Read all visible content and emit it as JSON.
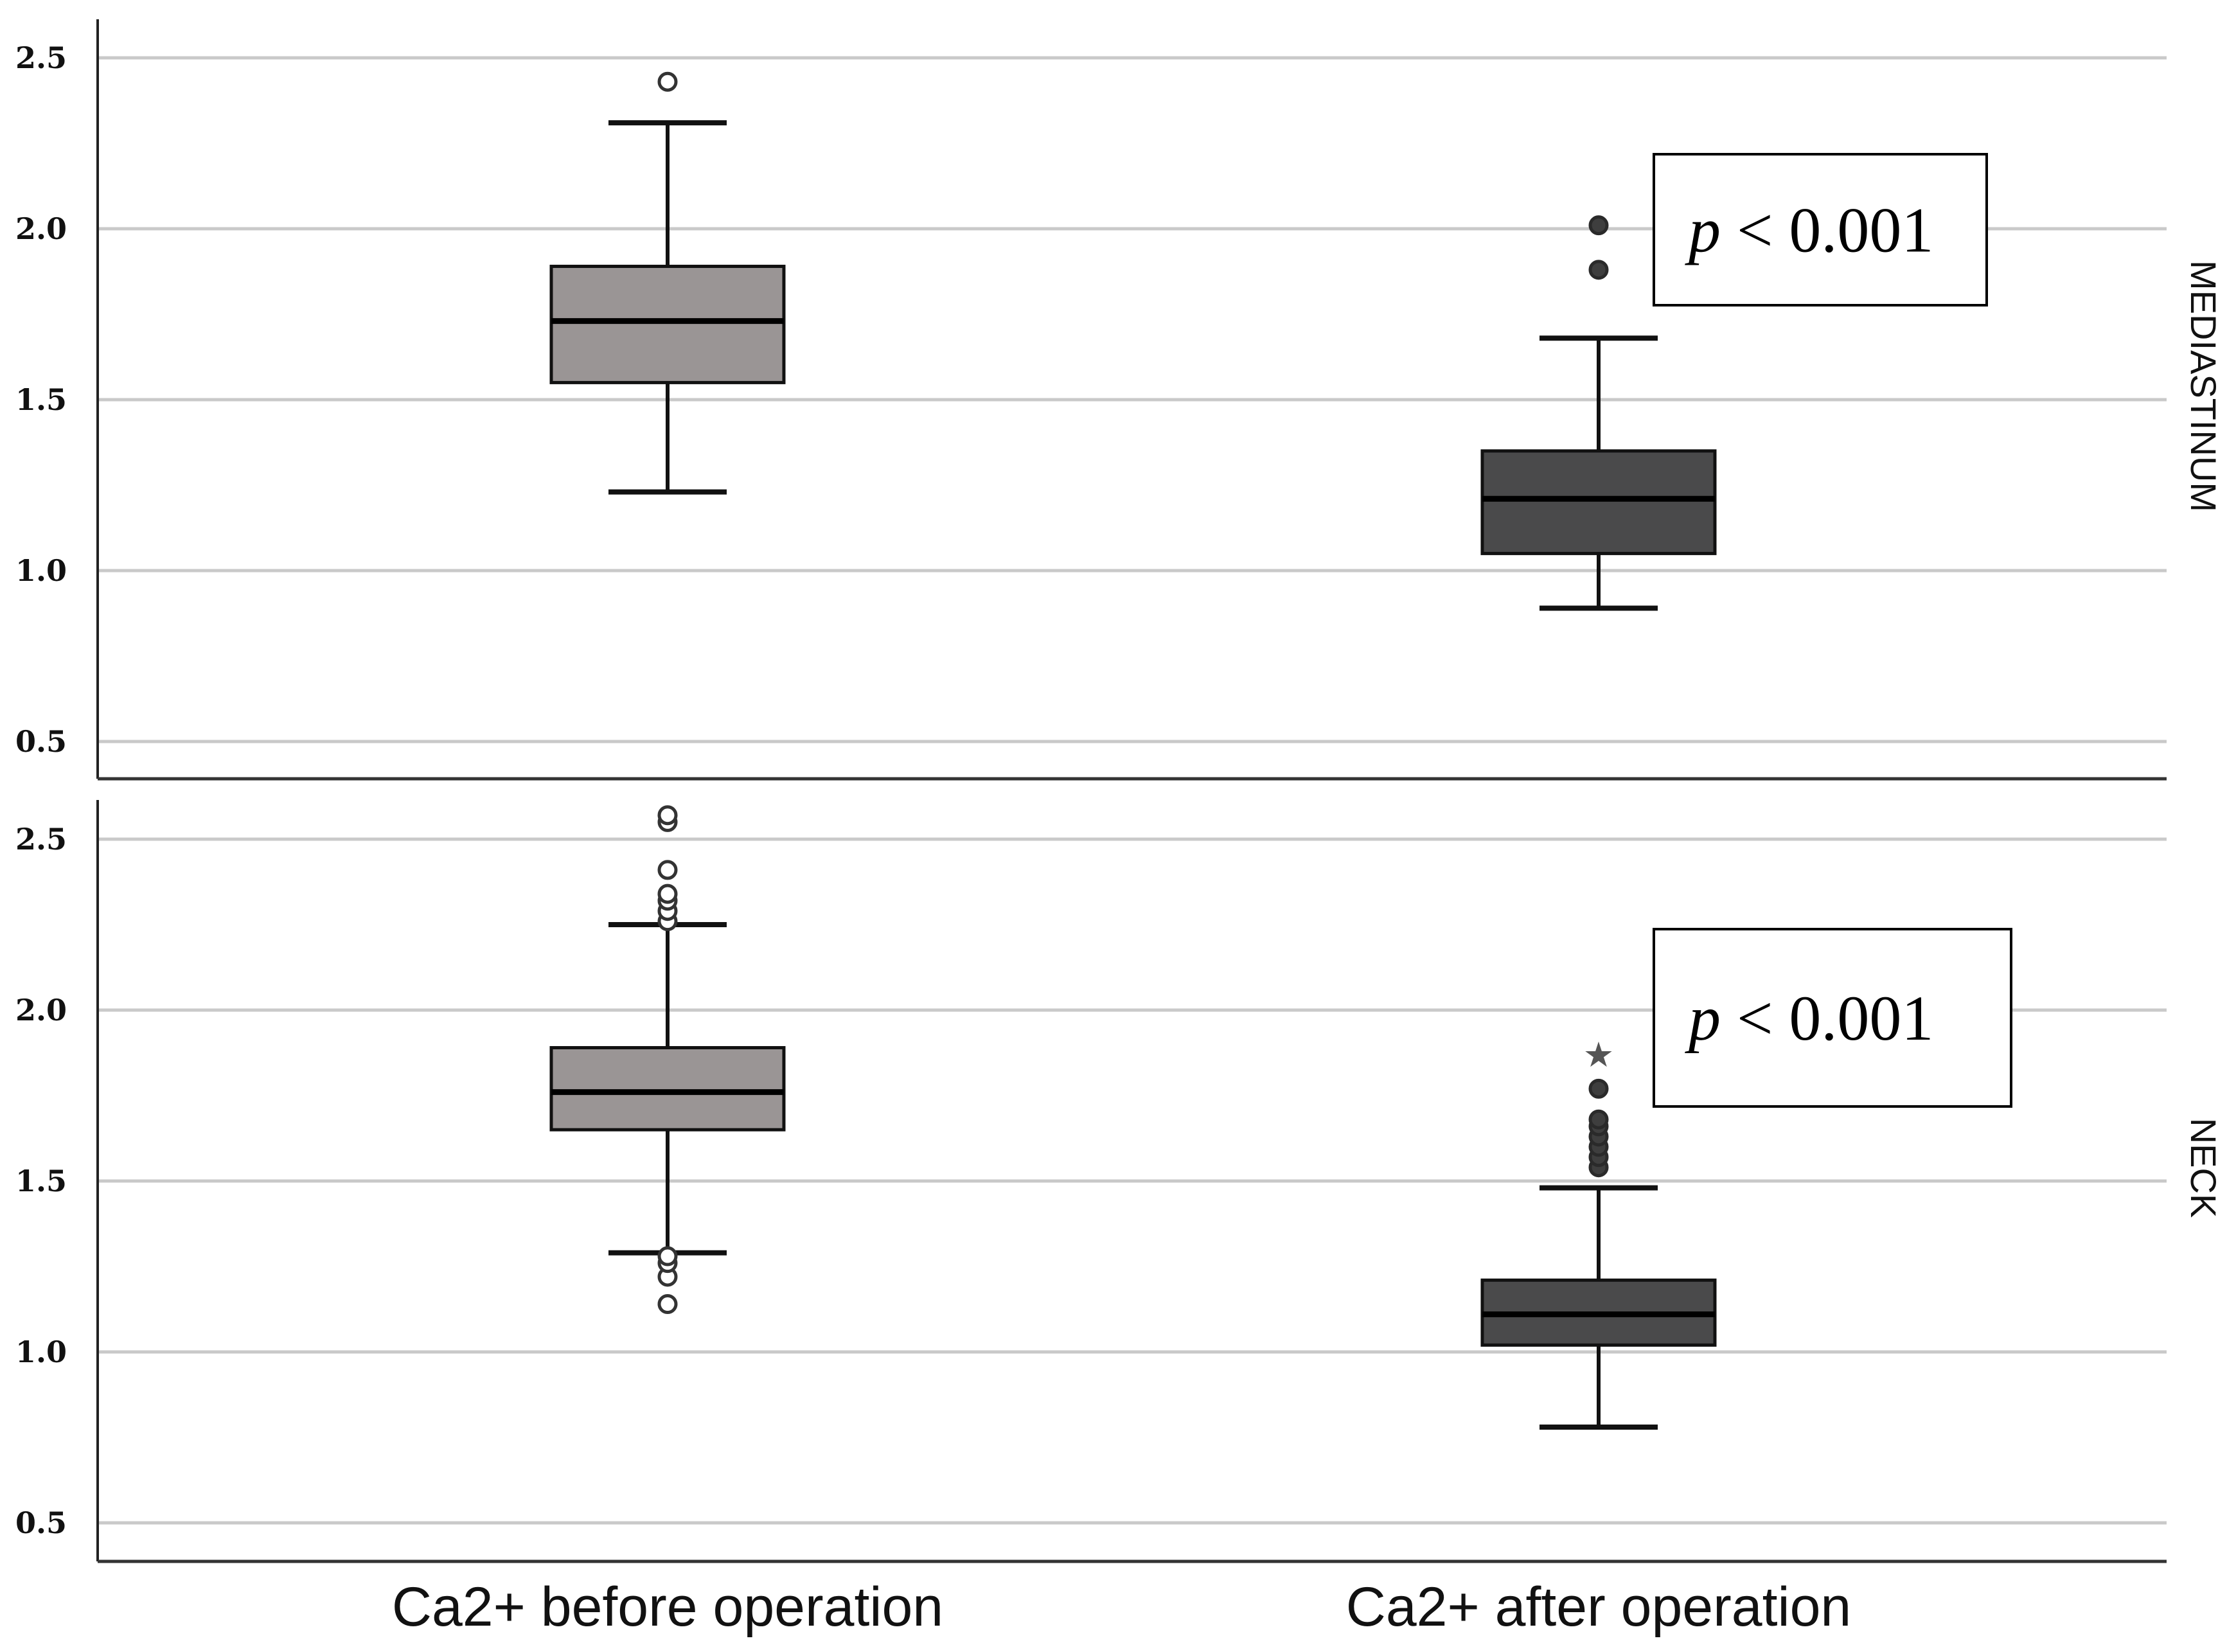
{
  "chart_data": {
    "type": "boxplot",
    "categories": [
      "Ca2+ before operation",
      "Ca2+ after operation"
    ],
    "y_ticks": [
      "0.5",
      "1.0",
      "1.5",
      "2.0",
      "2.5"
    ],
    "ylim": [
      0.4,
      2.62
    ],
    "box_colors": [
      "#9a9595",
      "#4a4a4b"
    ],
    "panels": [
      {
        "facet_label": "MEDIASTINUM",
        "annotation": {
          "p": "p",
          "rest": " < 0.001"
        },
        "boxes": [
          {
            "category": "Ca2+ before operation",
            "whisker_low": 1.23,
            "q1": 1.55,
            "median": 1.73,
            "q3": 1.89,
            "whisker_high": 2.31,
            "outliers": [
              2.43
            ],
            "extremes": []
          },
          {
            "category": "Ca2+ after operation",
            "whisker_low": 0.89,
            "q1": 1.05,
            "median": 1.21,
            "q3": 1.35,
            "whisker_high": 1.68,
            "outliers": [
              1.88,
              2.01
            ],
            "extremes": []
          }
        ]
      },
      {
        "facet_label": "NECK",
        "annotation": {
          "p": "p",
          "rest": " < 0.001"
        },
        "boxes": [
          {
            "category": "Ca2+ before operation",
            "whisker_low": 1.29,
            "q1": 1.65,
            "median": 1.76,
            "q3": 1.89,
            "whisker_high": 2.25,
            "outliers": [
              1.14,
              1.22,
              1.26,
              1.28,
              2.26,
              2.29,
              2.32,
              2.34,
              2.41,
              2.55,
              2.57
            ],
            "extremes": []
          },
          {
            "category": "Ca2+ after operation",
            "whisker_low": 0.78,
            "q1": 1.02,
            "median": 1.11,
            "q3": 1.21,
            "whisker_high": 1.48,
            "outliers": [
              1.54,
              1.57,
              1.6,
              1.63,
              1.66,
              1.68,
              1.77
            ],
            "extremes": [
              1.88
            ]
          }
        ]
      }
    ]
  }
}
